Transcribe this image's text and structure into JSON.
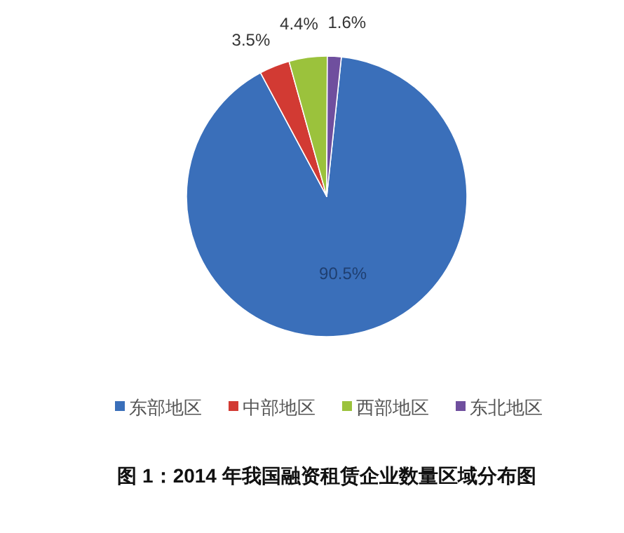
{
  "chart_data": {
    "type": "pie",
    "title": "图 1：2014 年我国融资租赁企业数量区域分布图",
    "categories": [
      "东部地区",
      "中部地区",
      "西部地区",
      "东北地区"
    ],
    "values": [
      90.5,
      3.5,
      4.4,
      1.6
    ],
    "value_labels": [
      "90.5%",
      "3.5%",
      "4.4%",
      "1.6%"
    ],
    "colors": [
      "#3a6fba",
      "#d23a33",
      "#9bc23c",
      "#6f4f9e"
    ],
    "legend": "bottom"
  }
}
